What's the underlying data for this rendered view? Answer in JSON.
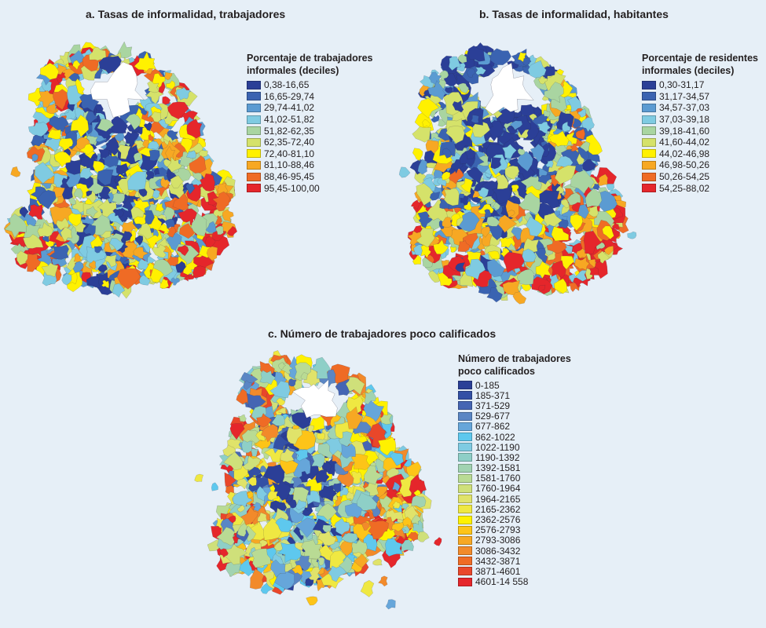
{
  "panels": [
    {
      "title": "a. Tasas de informalidad, trabajadores",
      "legend": {
        "title_lines": [
          "Porcentaje de trabajadores",
          "informales (deciles)"
        ],
        "items": [
          {
            "label": "0,38-16,65",
            "color": "#2b3f97"
          },
          {
            "label": "16,65-29,74",
            "color": "#3a63b1"
          },
          {
            "label": "29,74-41,02",
            "color": "#5b9bd2"
          },
          {
            "label": "41,02-51,82",
            "color": "#7fcbe2"
          },
          {
            "label": "51,82-62,35",
            "color": "#a9d5a1"
          },
          {
            "label": "62,35-72,40",
            "color": "#d5e26a"
          },
          {
            "label": "72,40-81,10",
            "color": "#fff100"
          },
          {
            "label": "81,10-88,46",
            "color": "#f7a823"
          },
          {
            "label": "88,46-95,45",
            "color": "#ef6b25"
          },
          {
            "label": "95,45-100,00",
            "color": "#e5262b"
          }
        ]
      }
    },
    {
      "title": "b. Tasas de informalidad, habitantes",
      "legend": {
        "title_lines": [
          "Porcentaje de residentes",
          "informales (deciles)"
        ],
        "items": [
          {
            "label": "0,30-31,17",
            "color": "#2b3f97"
          },
          {
            "label": "31,17-34,57",
            "color": "#3a63b1"
          },
          {
            "label": "34,57-37,03",
            "color": "#5b9bd2"
          },
          {
            "label": "37,03-39,18",
            "color": "#7fcbe2"
          },
          {
            "label": "39,18-41,60",
            "color": "#a9d5a1"
          },
          {
            "label": "41,60-44,02",
            "color": "#d5e26a"
          },
          {
            "label": "44,02-46,98",
            "color": "#fff100"
          },
          {
            "label": "46,98-50,26",
            "color": "#f7a823"
          },
          {
            "label": "50,26-54,25",
            "color": "#ef6b25"
          },
          {
            "label": "54,25-88,02",
            "color": "#e5262b"
          }
        ]
      }
    },
    {
      "title": "c. Número de trabajadores poco calificados",
      "legend": {
        "title_lines": [
          "Número de trabajadores",
          "poco calificados"
        ],
        "items": [
          {
            "label": "0-185",
            "color": "#2b3f97"
          },
          {
            "label": "185-371",
            "color": "#3350a5"
          },
          {
            "label": "371-529",
            "color": "#4565b3"
          },
          {
            "label": "529-677",
            "color": "#5a86c4"
          },
          {
            "label": "677-862",
            "color": "#66a6da"
          },
          {
            "label": "862-1022",
            "color": "#5ec8ee"
          },
          {
            "label": "1022-1190",
            "color": "#7fcbe2"
          },
          {
            "label": "1190-1392",
            "color": "#8ecfc7"
          },
          {
            "label": "1392-1581",
            "color": "#a1d3b1"
          },
          {
            "label": "1581-1760",
            "color": "#b9db94"
          },
          {
            "label": "1760-1964",
            "color": "#cfe07a"
          },
          {
            "label": "1964-2165",
            "color": "#e0e36a"
          },
          {
            "label": "2165-2362",
            "color": "#efe842"
          },
          {
            "label": "2362-2576",
            "color": "#fff100"
          },
          {
            "label": "2576-2793",
            "color": "#fdc418"
          },
          {
            "label": "2793-3086",
            "color": "#f7a823"
          },
          {
            "label": "3086-3432",
            "color": "#f28a2a"
          },
          {
            "label": "3432-3871",
            "color": "#ef6b25"
          },
          {
            "label": "3871-4601",
            "color": "#e9472a"
          },
          {
            "label": "4601-14 558",
            "color": "#e5262b"
          }
        ]
      }
    }
  ]
}
